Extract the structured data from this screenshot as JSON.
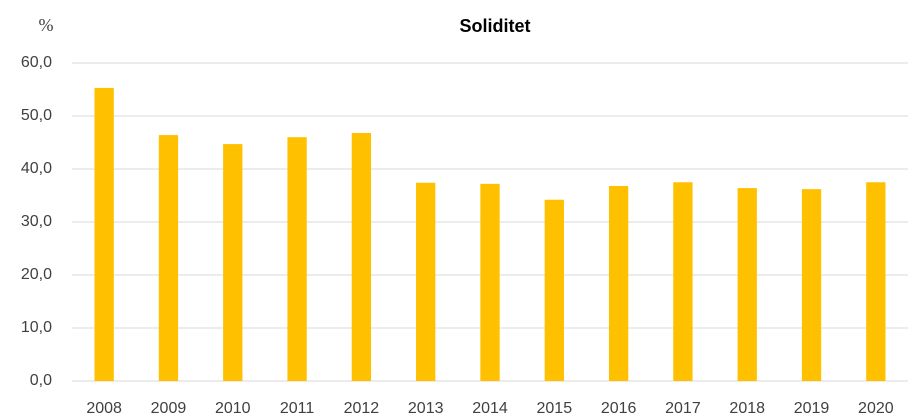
{
  "chart_data": {
    "type": "bar",
    "title": "Soliditet",
    "y_label": "%",
    "categories": [
      "2008",
      "2009",
      "2010",
      "2011",
      "2012",
      "2013",
      "2014",
      "2015",
      "2016",
      "2017",
      "2018",
      "2019",
      "2020"
    ],
    "values": [
      55.3,
      46.4,
      44.7,
      46.0,
      46.8,
      37.4,
      37.2,
      34.2,
      36.8,
      37.5,
      36.4,
      36.2,
      37.5
    ],
    "color": "#ffc000",
    "ylim": [
      0,
      60
    ],
    "yticks": [
      {
        "value": 0,
        "label": "0,0"
      },
      {
        "value": 10,
        "label": "10,0"
      },
      {
        "value": 20,
        "label": "20,0"
      },
      {
        "value": 30,
        "label": "30,0"
      },
      {
        "value": 40,
        "label": "40,0"
      },
      {
        "value": 50,
        "label": "50,0"
      },
      {
        "value": 60,
        "label": "60,0"
      }
    ],
    "grid": true
  }
}
